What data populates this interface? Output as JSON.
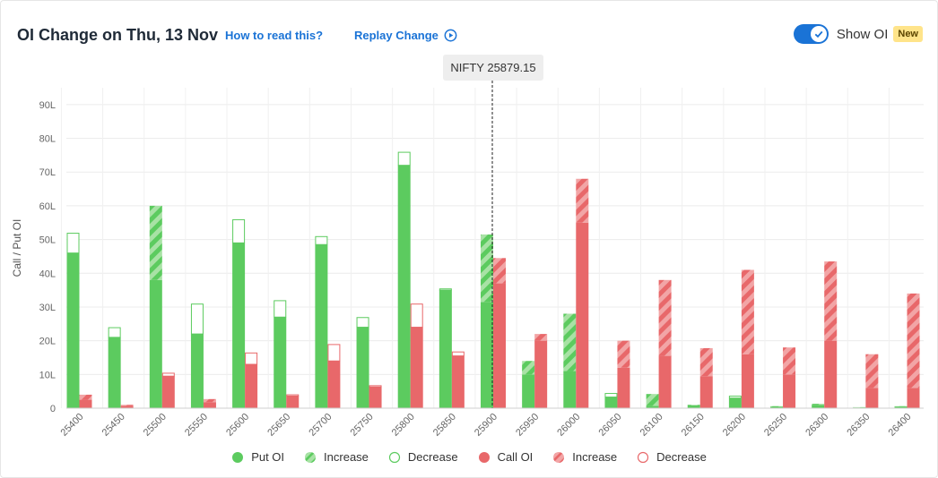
{
  "header": {
    "title": "OI Change on Thu, 13 Nov",
    "how_to_read": "How to read this?",
    "replay": "Replay Change",
    "show_oi": "Show OI",
    "new_badge": "New",
    "toggle_on": true
  },
  "tooltip": {
    "label": "NIFTY 25879.15"
  },
  "colors": {
    "put": "#5ccb5f",
    "call": "#e8686a",
    "put_stripe_light": "#a8e2a5",
    "call_stripe_light": "#f2a5a6",
    "accent": "#1a73d6"
  },
  "chart_data": {
    "type": "bar",
    "ylabel": "Call / Put OI",
    "ylim": [
      0,
      95
    ],
    "yticks": [
      0,
      10,
      20,
      30,
      40,
      50,
      60,
      70,
      80,
      90
    ],
    "ytick_labels": [
      "0",
      "10L",
      "20L",
      "30L",
      "40L",
      "50L",
      "60L",
      "70L",
      "80L",
      "90L"
    ],
    "grid": true,
    "spot_line": {
      "x": 25879.15,
      "between": [
        "25850",
        "25900"
      ]
    },
    "categories": [
      "25400",
      "25450",
      "25500",
      "25550",
      "25600",
      "25650",
      "25700",
      "25750",
      "25800",
      "25850",
      "25900",
      "25950",
      "26000",
      "26050",
      "26100",
      "26150",
      "26200",
      "26250",
      "26300",
      "26350",
      "26400"
    ],
    "series": [
      {
        "name": "Put OI",
        "current": [
          46,
          21,
          60,
          22,
          49,
          27,
          48.5,
          24,
          72,
          35,
          51.5,
          14,
          28,
          3.3,
          4.2,
          1,
          3,
          0.6,
          1.3,
          0.3,
          0.6
        ],
        "previous": [
          52,
          24,
          38,
          31,
          56,
          32,
          51,
          27,
          76,
          35.5,
          31.5,
          10,
          11,
          4.5,
          0.7,
          0.8,
          3.7,
          0.4,
          1.0,
          0.2,
          0.5
        ]
      },
      {
        "name": "Call OI",
        "current": [
          4,
          1,
          9.5,
          2.7,
          13,
          3.6,
          14,
          6.3,
          24,
          15.5,
          44.5,
          22,
          68,
          20,
          38,
          17.8,
          41,
          18,
          43.5,
          16,
          34
        ],
        "previous": [
          2.5,
          0.7,
          10.5,
          1.8,
          16.5,
          4.1,
          19,
          6.8,
          31,
          16.8,
          37,
          20,
          55,
          12,
          15.5,
          9.5,
          16,
          10,
          20,
          6,
          6
        ]
      }
    ],
    "legend": [
      {
        "key": "put",
        "style": "solid",
        "label": "Put OI"
      },
      {
        "key": "put",
        "style": "striped",
        "label": "Increase"
      },
      {
        "key": "put",
        "style": "outline",
        "label": "Decrease"
      },
      {
        "key": "call",
        "style": "solid",
        "label": "Call OI"
      },
      {
        "key": "call",
        "style": "striped",
        "label": "Increase"
      },
      {
        "key": "call",
        "style": "outline",
        "label": "Decrease"
      }
    ],
    "legend_position": "bottom"
  }
}
